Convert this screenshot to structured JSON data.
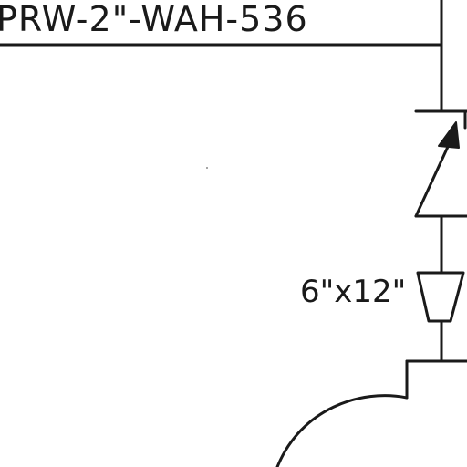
{
  "diagram": {
    "line_number": "PRW-2\"-WAH-536",
    "reducer_size": "6\"x12\""
  },
  "symbols": {
    "pipe": "vertical-pipe-line",
    "valve": "check-valve-icon",
    "reducer": "reducer-icon",
    "vessel": "vessel-nozzle-icon"
  },
  "colors": {
    "ink": "#1a1a1a",
    "paper": "#ffffff"
  }
}
